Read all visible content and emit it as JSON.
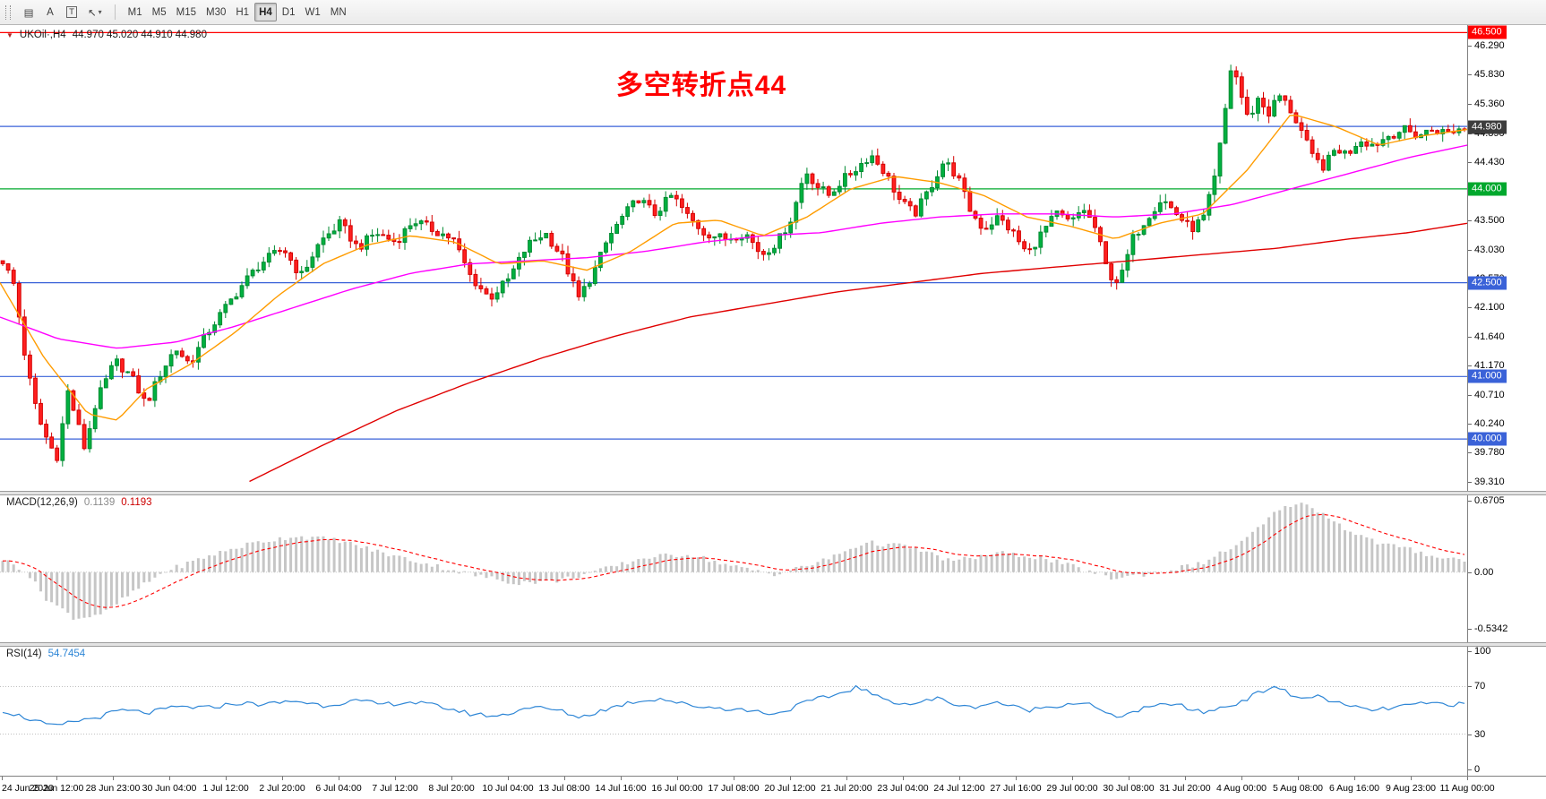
{
  "toolbar": {
    "icons": [
      {
        "name": "chart-grid-icon",
        "glyph": "▤"
      },
      {
        "name": "text-tool-icon",
        "glyph": "A"
      },
      {
        "name": "label-tool-icon",
        "glyph": "T"
      },
      {
        "name": "objects-tool-icon",
        "glyph": "↖"
      },
      {
        "name": "dropdown-caret-icon",
        "glyph": "▾"
      }
    ],
    "timeframes": [
      "M1",
      "M5",
      "M15",
      "M30",
      "H1",
      "H4",
      "D1",
      "W1",
      "MN"
    ],
    "active_timeframe": "H4"
  },
  "chart": {
    "symbol_marker": "▼",
    "title": "UKOil·,H4",
    "ohlc_text": "44.970 45.020 44.910 44.980",
    "annotation_text": "多空转折点44",
    "annotation_color": "#ff0000"
  },
  "macd_panel": {
    "label": "MACD(12,26,9)",
    "main_value": "0.1139",
    "signal_value": "0.1193",
    "axis_labels": [
      "0.6705",
      "0.00",
      "-0.5342"
    ]
  },
  "rsi_panel": {
    "label": "RSI(14)",
    "value": "54.7454",
    "axis_labels": [
      "100",
      "70",
      "30",
      "0"
    ]
  },
  "time_axis_labels": [
    "24 Jun 2020",
    "25 Jun 12:00",
    "28 Jun 23:00",
    "30 Jun 04:00",
    "1 Jul 12:00",
    "2 Jul 20:00",
    "6 Jul 04:00",
    "7 Jul 12:00",
    "8 Jul 20:00",
    "10 Jul 04:00",
    "13 Jul 08:00",
    "14 Jul 16:00",
    "16 Jul 00:00",
    "17 Jul 08:00",
    "20 Jul 12:00",
    "21 Jul 20:00",
    "23 Jul 04:00",
    "24 Jul 12:00",
    "27 Jul 16:00",
    "29 Jul 00:00",
    "30 Jul 08:00",
    "31 Jul 20:00",
    "4 Aug 00:00",
    "5 Aug 08:00",
    "6 Aug 16:00",
    "9 Aug 23:00",
    "11 Aug 00:00"
  ],
  "chart_data": {
    "type": "candlestick",
    "symbol": "UKOil",
    "timeframe": "H4",
    "current_ohlc": {
      "open": 44.97,
      "high": 45.02,
      "low": 44.91,
      "close": 44.98
    },
    "ylim": [
      39.17,
      46.62
    ],
    "price_axis_labels": [
      "46.290",
      "45.830",
      "45.360",
      "44.890",
      "44.430",
      "43.960",
      "43.500",
      "43.030",
      "42.570",
      "42.100",
      "41.640",
      "41.170",
      "40.710",
      "40.240",
      "39.780",
      "39.310"
    ],
    "hlines": [
      {
        "price": 46.5,
        "color": "#ff0000",
        "label": "46.500"
      },
      {
        "price": 45.0,
        "color": "#3a62d8",
        "label": null
      },
      {
        "price": 44.0,
        "color": "#00a82d",
        "label": "44.000"
      },
      {
        "price": 42.5,
        "color": "#3a62d8",
        "label": "42.500"
      },
      {
        "price": 41.0,
        "color": "#3a62d8",
        "label": "41.000"
      },
      {
        "price": 40.0,
        "color": "#3a62d8",
        "label": "40.000"
      }
    ],
    "current_price": {
      "value": 44.98,
      "label": "44.980",
      "box_color": "#3d3d3d"
    },
    "candle_count": 270,
    "price_path": [
      [
        0,
        42.85
      ],
      [
        0.008,
        42.45
      ],
      [
        0.016,
        41.2
      ],
      [
        0.024,
        40.35
      ],
      [
        0.032,
        39.9
      ],
      [
        0.038,
        39.7
      ],
      [
        0.044,
        40.8
      ],
      [
        0.05,
        40.35
      ],
      [
        0.056,
        39.85
      ],
      [
        0.064,
        40.6
      ],
      [
        0.077,
        41.25
      ],
      [
        0.088,
        41.0
      ],
      [
        0.098,
        40.55
      ],
      [
        0.108,
        41.05
      ],
      [
        0.118,
        41.45
      ],
      [
        0.128,
        41.2
      ],
      [
        0.14,
        41.7
      ],
      [
        0.154,
        42.15
      ],
      [
        0.165,
        42.5
      ],
      [
        0.176,
        42.8
      ],
      [
        0.192,
        43.05
      ],
      [
        0.204,
        42.6
      ],
      [
        0.217,
        43.15
      ],
      [
        0.231,
        43.45
      ],
      [
        0.243,
        43.05
      ],
      [
        0.255,
        43.3
      ],
      [
        0.269,
        43.15
      ],
      [
        0.281,
        43.5
      ],
      [
        0.294,
        43.35
      ],
      [
        0.308,
        43.2
      ],
      [
        0.32,
        42.6
      ],
      [
        0.333,
        42.25
      ],
      [
        0.346,
        42.55
      ],
      [
        0.359,
        43.1
      ],
      [
        0.371,
        43.3
      ],
      [
        0.383,
        42.9
      ],
      [
        0.394,
        42.25
      ],
      [
        0.404,
        42.65
      ],
      [
        0.414,
        43.2
      ],
      [
        0.424,
        43.55
      ],
      [
        0.435,
        43.85
      ],
      [
        0.446,
        43.6
      ],
      [
        0.458,
        43.9
      ],
      [
        0.469,
        43.55
      ],
      [
        0.48,
        43.3
      ],
      [
        0.494,
        43.2
      ],
      [
        0.508,
        43.3
      ],
      [
        0.519,
        42.95
      ],
      [
        0.53,
        43.15
      ],
      [
        0.54,
        43.55
      ],
      [
        0.549,
        44.3
      ],
      [
        0.557,
        44.05
      ],
      [
        0.565,
        43.9
      ],
      [
        0.575,
        44.15
      ],
      [
        0.585,
        44.35
      ],
      [
        0.594,
        44.55
      ],
      [
        0.604,
        44.25
      ],
      [
        0.614,
        43.8
      ],
      [
        0.624,
        43.6
      ],
      [
        0.634,
        44.0
      ],
      [
        0.644,
        44.45
      ],
      [
        0.653,
        44.2
      ],
      [
        0.662,
        43.65
      ],
      [
        0.671,
        43.35
      ],
      [
        0.681,
        43.55
      ],
      [
        0.691,
        43.3
      ],
      [
        0.701,
        42.95
      ],
      [
        0.711,
        43.3
      ],
      [
        0.721,
        43.6
      ],
      [
        0.731,
        43.45
      ],
      [
        0.739,
        43.7
      ],
      [
        0.748,
        43.35
      ],
      [
        0.756,
        42.65
      ],
      [
        0.764,
        42.5
      ],
      [
        0.773,
        43.2
      ],
      [
        0.783,
        43.55
      ],
      [
        0.793,
        43.85
      ],
      [
        0.803,
        43.6
      ],
      [
        0.813,
        43.35
      ],
      [
        0.822,
        43.55
      ],
      [
        0.83,
        44.25
      ],
      [
        0.836,
        45.2
      ],
      [
        0.841,
        46.05
      ],
      [
        0.846,
        45.6
      ],
      [
        0.852,
        45.1
      ],
      [
        0.859,
        45.45
      ],
      [
        0.866,
        45.2
      ],
      [
        0.873,
        45.5
      ],
      [
        0.88,
        45.3
      ],
      [
        0.888,
        44.95
      ],
      [
        0.896,
        44.5
      ],
      [
        0.904,
        44.35
      ],
      [
        0.912,
        44.65
      ],
      [
        0.92,
        44.55
      ],
      [
        0.928,
        44.8
      ],
      [
        0.938,
        44.7
      ],
      [
        0.948,
        44.85
      ],
      [
        0.958,
        44.95
      ],
      [
        0.968,
        44.85
      ],
      [
        0.978,
        44.95
      ],
      [
        0.988,
        44.9
      ],
      [
        1.0,
        44.98
      ]
    ],
    "ma_fast_orange": [
      [
        0,
        42.5
      ],
      [
        0.03,
        41.3
      ],
      [
        0.06,
        40.4
      ],
      [
        0.08,
        40.3
      ],
      [
        0.1,
        40.8
      ],
      [
        0.13,
        41.2
      ],
      [
        0.16,
        41.7
      ],
      [
        0.19,
        42.3
      ],
      [
        0.22,
        42.8
      ],
      [
        0.25,
        43.1
      ],
      [
        0.28,
        43.25
      ],
      [
        0.31,
        43.15
      ],
      [
        0.34,
        42.8
      ],
      [
        0.37,
        42.85
      ],
      [
        0.4,
        42.7
      ],
      [
        0.43,
        43.0
      ],
      [
        0.46,
        43.45
      ],
      [
        0.49,
        43.5
      ],
      [
        0.52,
        43.25
      ],
      [
        0.55,
        43.55
      ],
      [
        0.58,
        44.0
      ],
      [
        0.61,
        44.2
      ],
      [
        0.64,
        44.1
      ],
      [
        0.67,
        43.9
      ],
      [
        0.7,
        43.55
      ],
      [
        0.73,
        43.4
      ],
      [
        0.76,
        43.2
      ],
      [
        0.79,
        43.45
      ],
      [
        0.82,
        43.6
      ],
      [
        0.85,
        44.3
      ],
      [
        0.88,
        45.2
      ],
      [
        0.91,
        45.0
      ],
      [
        0.94,
        44.7
      ],
      [
        0.97,
        44.85
      ],
      [
        1.0,
        44.95
      ]
    ],
    "ma_mid_magenta": [
      [
        0,
        41.95
      ],
      [
        0.04,
        41.6
      ],
      [
        0.08,
        41.45
      ],
      [
        0.12,
        41.55
      ],
      [
        0.16,
        41.8
      ],
      [
        0.2,
        42.1
      ],
      [
        0.24,
        42.4
      ],
      [
        0.28,
        42.65
      ],
      [
        0.32,
        42.8
      ],
      [
        0.36,
        42.85
      ],
      [
        0.4,
        42.9
      ],
      [
        0.44,
        43.0
      ],
      [
        0.48,
        43.15
      ],
      [
        0.52,
        43.25
      ],
      [
        0.56,
        43.3
      ],
      [
        0.6,
        43.45
      ],
      [
        0.64,
        43.55
      ],
      [
        0.68,
        43.6
      ],
      [
        0.72,
        43.6
      ],
      [
        0.76,
        43.55
      ],
      [
        0.8,
        43.6
      ],
      [
        0.84,
        43.75
      ],
      [
        0.88,
        44.0
      ],
      [
        0.92,
        44.25
      ],
      [
        0.96,
        44.5
      ],
      [
        1.0,
        44.7
      ]
    ],
    "ma_slow_red": [
      [
        0.17,
        39.32
      ],
      [
        0.22,
        39.9
      ],
      [
        0.27,
        40.45
      ],
      [
        0.32,
        40.9
      ],
      [
        0.37,
        41.3
      ],
      [
        0.42,
        41.65
      ],
      [
        0.47,
        41.95
      ],
      [
        0.52,
        42.15
      ],
      [
        0.57,
        42.35
      ],
      [
        0.62,
        42.5
      ],
      [
        0.67,
        42.65
      ],
      [
        0.72,
        42.75
      ],
      [
        0.77,
        42.85
      ],
      [
        0.82,
        42.95
      ],
      [
        0.87,
        43.05
      ],
      [
        0.92,
        43.2
      ],
      [
        0.96,
        43.3
      ],
      [
        1.0,
        43.45
      ]
    ],
    "macd": {
      "params": [
        12,
        26,
        9
      ],
      "values": [
        0.1139,
        0.1193
      ],
      "range": [
        -0.5342,
        0.6705
      ],
      "path": [
        [
          0,
          0.12
        ],
        [
          0.015,
          0.02
        ],
        [
          0.03,
          -0.25
        ],
        [
          0.05,
          -0.44
        ],
        [
          0.07,
          -0.38
        ],
        [
          0.09,
          -0.18
        ],
        [
          0.11,
          0.0
        ],
        [
          0.14,
          0.15
        ],
        [
          0.17,
          0.27
        ],
        [
          0.2,
          0.34
        ],
        [
          0.23,
          0.3
        ],
        [
          0.26,
          0.18
        ],
        [
          0.29,
          0.08
        ],
        [
          0.32,
          -0.02
        ],
        [
          0.35,
          -0.1
        ],
        [
          0.38,
          -0.08
        ],
        [
          0.41,
          0.02
        ],
        [
          0.44,
          0.14
        ],
        [
          0.47,
          0.17
        ],
        [
          0.5,
          0.05
        ],
        [
          0.53,
          -0.02
        ],
        [
          0.56,
          0.1
        ],
        [
          0.59,
          0.28
        ],
        [
          0.62,
          0.24
        ],
        [
          0.65,
          0.1
        ],
        [
          0.68,
          0.18
        ],
        [
          0.71,
          0.14
        ],
        [
          0.74,
          0.02
        ],
        [
          0.76,
          -0.06
        ],
        [
          0.79,
          0.0
        ],
        [
          0.82,
          0.08
        ],
        [
          0.85,
          0.3
        ],
        [
          0.87,
          0.55
        ],
        [
          0.885,
          0.66
        ],
        [
          0.9,
          0.58
        ],
        [
          0.92,
          0.4
        ],
        [
          0.94,
          0.28
        ],
        [
          0.96,
          0.22
        ],
        [
          0.98,
          0.15
        ],
        [
          1.0,
          0.11
        ]
      ]
    },
    "rsi": {
      "period": 14,
      "value": 54.7454,
      "range": [
        0,
        100
      ],
      "levels": [
        30,
        70
      ],
      "path": [
        [
          0,
          50
        ],
        [
          0.02,
          42
        ],
        [
          0.035,
          36
        ],
        [
          0.05,
          41
        ],
        [
          0.065,
          44
        ],
        [
          0.08,
          50
        ],
        [
          0.1,
          48
        ],
        [
          0.12,
          53
        ],
        [
          0.14,
          52
        ],
        [
          0.16,
          56
        ],
        [
          0.18,
          55
        ],
        [
          0.2,
          58
        ],
        [
          0.22,
          54
        ],
        [
          0.24,
          58
        ],
        [
          0.26,
          55
        ],
        [
          0.28,
          57
        ],
        [
          0.3,
          53
        ],
        [
          0.32,
          47
        ],
        [
          0.34,
          45
        ],
        [
          0.36,
          53
        ],
        [
          0.38,
          50
        ],
        [
          0.395,
          44
        ],
        [
          0.41,
          50
        ],
        [
          0.43,
          57
        ],
        [
          0.45,
          60
        ],
        [
          0.47,
          54
        ],
        [
          0.49,
          52
        ],
        [
          0.51,
          50
        ],
        [
          0.53,
          47
        ],
        [
          0.55,
          57
        ],
        [
          0.57,
          63
        ],
        [
          0.585,
          70
        ],
        [
          0.6,
          60
        ],
        [
          0.62,
          55
        ],
        [
          0.64,
          60
        ],
        [
          0.66,
          52
        ],
        [
          0.68,
          57
        ],
        [
          0.7,
          50
        ],
        [
          0.72,
          54
        ],
        [
          0.74,
          57
        ],
        [
          0.76,
          44
        ],
        [
          0.78,
          51
        ],
        [
          0.8,
          56
        ],
        [
          0.82,
          48
        ],
        [
          0.84,
          54
        ],
        [
          0.855,
          62
        ],
        [
          0.87,
          71
        ],
        [
          0.885,
          60
        ],
        [
          0.9,
          62
        ],
        [
          0.92,
          53
        ],
        [
          0.94,
          50
        ],
        [
          0.96,
          54
        ],
        [
          0.98,
          56
        ],
        [
          1.0,
          54.7
        ]
      ]
    },
    "colors": {
      "up_fill": "#00b140",
      "up_stroke": "#008a31",
      "down_fill": "#ff2020",
      "down_stroke": "#d40000",
      "ma_fast": "#ff9c00",
      "ma_mid": "#ff00ff",
      "ma_slow": "#e00000",
      "macd_hist": "#c6c6c6",
      "macd_signal": "#ff0000",
      "rsi": "#2e86d6"
    }
  }
}
